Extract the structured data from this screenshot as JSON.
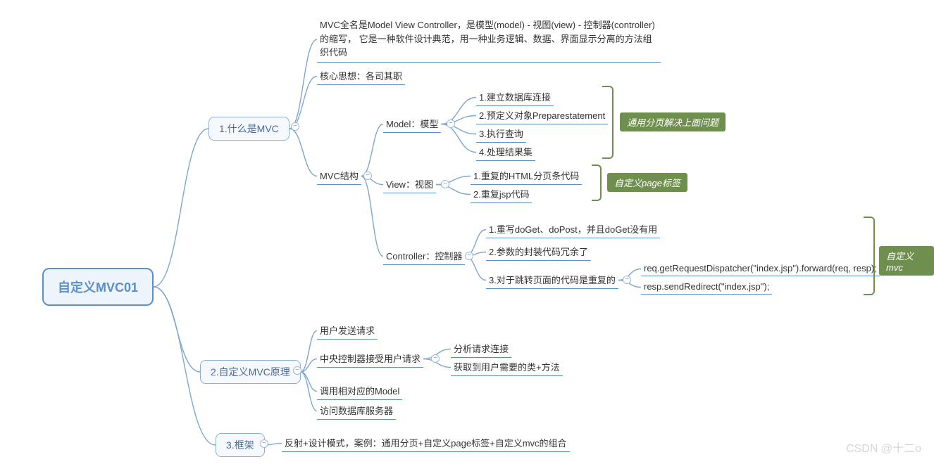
{
  "colors": {
    "root_border": "#5b8fc7",
    "root_bg": "#eef4fb",
    "box_border": "#8ab0d9",
    "box_bg": "#f5f9fd",
    "leaf_underline": "#5b8fc7",
    "connector": "#7ea6cf",
    "bracket": "#6f8f4e",
    "tag_bg": "#6f8f4e",
    "expander_border": "#9fb8d6"
  },
  "root": {
    "label": "自定义MVC01"
  },
  "t1": {
    "label": "1.什么是MVC"
  },
  "t2": {
    "label": "2.自定义MVC原理"
  },
  "t3": {
    "label": "3.框架"
  },
  "t1_desc": "MVC全名是Model View Controller，是模型(model) - 视图(view) - 控制器(controller)的缩写， 它是一种软件设计典范，用一种业务逻辑、数据、界面显示分离的方法组织代码",
  "t1_core": "核心思想：各司其职",
  "t1_struct": "MVC结构",
  "model": {
    "label": "Model：模型",
    "c1": "1.建立数据库连接",
    "c2": "2.预定义对象Preparestatement",
    "c3": "3.执行查询",
    "c4": "4.处理结果集"
  },
  "view": {
    "label": "View：视图",
    "c1": "1.重复的HTML分页条代码",
    "c2": "2.重复jsp代码"
  },
  "ctrl": {
    "label": "Controller：控制器",
    "c1": "1.重写doGet、doPost，并且doGet没有用",
    "c2": "2.参数的封装代码冗余了",
    "c3": "3.对于跳转页面的代码是重复的",
    "c3a": "req.getRequestDispatcher(\"index.jsp\").forward(req, resp);",
    "c3b": "resp.sendRedirect(\"index.jsp\");"
  },
  "tags": {
    "model": "通用分页解决上面问题",
    "view": "自定义page标签",
    "mvc": "自定义mvc"
  },
  "p1": "用户发送请求",
  "p2": "中央控制器接受用户请求",
  "p2a": "分析请求连接",
  "p2b": "获取到用户需要的类+方法",
  "p3": "调用相对应的Model",
  "p4": "访问数据库服务器",
  "t3_text": "反射+设计模式，案例：通用分页+自定义page标签+自定义mvc的组合",
  "watermark": "CSDN @十二o",
  "expander_glyph": "−"
}
